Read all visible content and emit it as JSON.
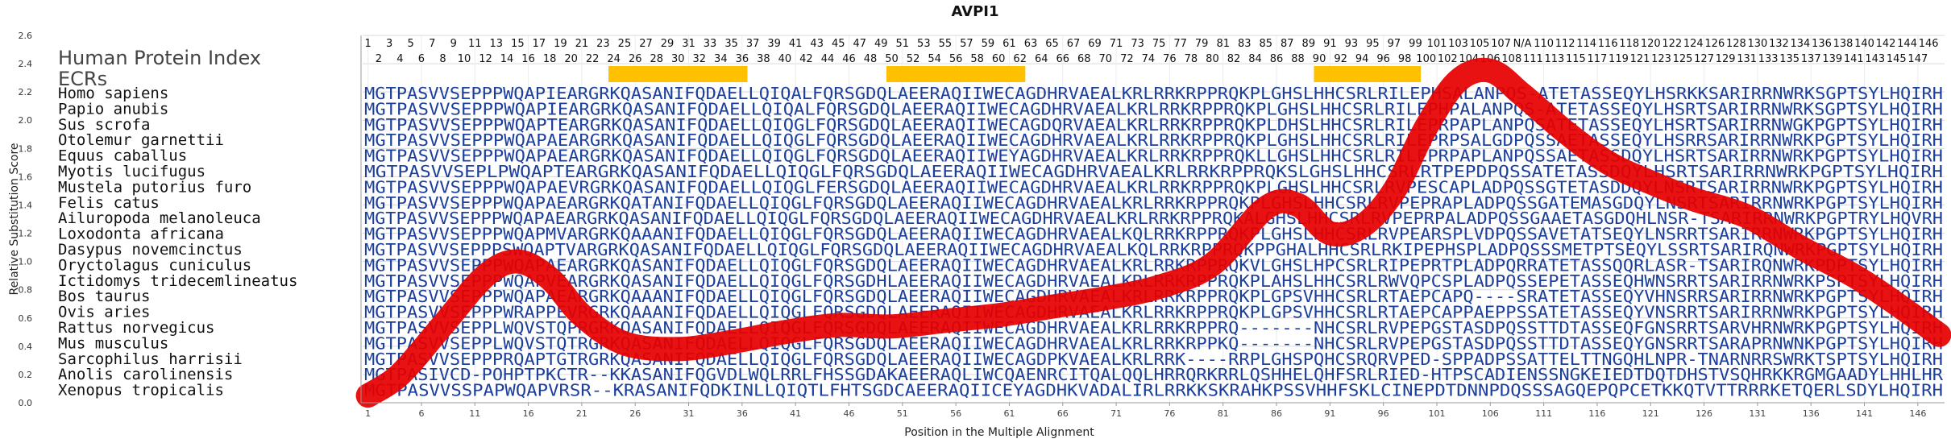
{
  "chart_data": {
    "type": "line",
    "title": "AVPI1",
    "xlabel": "Position in the Multiple Alignment",
    "ylabel": "Relative Substitution Score",
    "xlim": [
      1,
      148
    ],
    "ylim": [
      0,
      2.6
    ],
    "yticks": [
      "0.0",
      "0.2",
      "0.4",
      "0.6",
      "0.8",
      "1.0",
      "1.2",
      "1.4",
      "1.6",
      "1.8",
      "2.0",
      "2.2",
      "2.4",
      "2.6"
    ],
    "xticks": [
      "1",
      "6",
      "11",
      "16",
      "21",
      "26",
      "31",
      "36",
      "41",
      "46",
      "51",
      "56",
      "61",
      "66",
      "71",
      "76",
      "81",
      "86",
      "91",
      "96",
      "101",
      "106",
      "111",
      "116",
      "121",
      "126",
      "131",
      "136",
      "141",
      "146"
    ],
    "grid": true,
    "header_labels": {
      "human_index": "Human Protein Index",
      "ecrs": "ECRs"
    },
    "human_positions": [
      "1",
      "2",
      "3",
      "4",
      "5",
      "6",
      "7",
      "8",
      "9",
      "10",
      "11",
      "12",
      "13",
      "14",
      "15",
      "16",
      "17",
      "18",
      "19",
      "20",
      "21",
      "22",
      "23",
      "24",
      "25",
      "26",
      "27",
      "28",
      "29",
      "30",
      "31",
      "32",
      "33",
      "34",
      "35",
      "36",
      "37",
      "38",
      "39",
      "40",
      "41",
      "42",
      "43",
      "44",
      "45",
      "46",
      "47",
      "48",
      "49",
      "50",
      "51",
      "52",
      "53",
      "54",
      "55",
      "56",
      "57",
      "58",
      "59",
      "60",
      "61",
      "62",
      "63",
      "64",
      "65",
      "66",
      "67",
      "68",
      "69",
      "70",
      "71",
      "72",
      "73",
      "74",
      "75",
      "76",
      "77",
      "78",
      "79",
      "80",
      "81",
      "82",
      "83",
      "84",
      "85",
      "86",
      "87",
      "88",
      "89",
      "90",
      "91",
      "92",
      "93",
      "94",
      "95",
      "96",
      "97",
      "98",
      "99",
      "100",
      "101",
      "102",
      "103",
      "104",
      "105",
      "106",
      "107",
      "108",
      "N/A",
      "111",
      "110",
      "113",
      "112",
      "115",
      "114",
      "117",
      "116",
      "119",
      "118",
      "121",
      "120",
      "123",
      "122",
      "125",
      "124",
      "127",
      "126",
      "129",
      "128",
      "131",
      "130",
      "133",
      "132",
      "135",
      "134",
      "137",
      "136",
      "139",
      "138",
      "141",
      "140",
      "143",
      "142",
      "145",
      "144",
      "147",
      "146"
    ],
    "ecrs": [
      {
        "start": 24,
        "end": 36
      },
      {
        "start": 50,
        "end": 62
      },
      {
        "start": 90,
        "end": 99
      }
    ],
    "ecr_color": "#ffc000",
    "line_color": "#e60000",
    "sequence_color": "#1c3f9c",
    "sequences": [
      {
        "species": "Homo sapiens",
        "seq": "MGTPASVVSEPPPWQAPIEARGRKQASANIFQDAELLQIQALFQRSGDQLAEERAQIIWECAGDHRVAEALKRLRRKRPPRQKPLGHSLHHCSRLRILEPHSALANPQS-ATETASSEQYLHSRKKSARIRRNWRKSGPTSYLHQIRH"
      },
      {
        "species": "Papio anubis",
        "seq": "MGTPASVVSEPPPWQAPIEARGRKQASANIFQDAELLQIQALFQRSGDQLAEERAQIIWECAGDHRVAEALKRLRRKRPPRQKPLGHSLHHCSRLRILEPHPALANPQS-ATETASSEQYLHSRTSARIRRNWRKSGPTSYLHQIRH"
      },
      {
        "species": "Sus scrofa",
        "seq": "MGTPASVVSEPPPWQAPTEARGRKQASANIFQDAELLQIQGLFQRSGDQLAEERAQIIWECAGDQRVAEALKRLRRKRPPRQKPLDHSLHHCSRLRILEPRPAPLANPQSATETASSEQYLHSRTSARIRRNWGKPGPTSYLHQIRH"
      },
      {
        "species": "Otolemur garnettii",
        "seq": "MGTPASVVSEPPPWQAPAEARGRKQASANIFQDAELLQIQGLFQRSGDQLAEERAQIIWECAGDHRVAEALKRLRRKRPPRQKPLGHSLHHCSRLRILEPRPSALGDPQSSAETASSEQYLHSRRSARIRRNWRKPGPTSYLHQIRH"
      },
      {
        "species": "Equus caballus",
        "seq": "MGTPASVVSEPPPWQAPAEARGRKQASANIFQDAELLQIQGLFQRSGDQLAEERAQIIWEYAGDHRVAEALKRLRRKRPPRQKLLGHSLHHCSRLRILEPRPAPLANPQSSAETASSDQYLHSRTSARIRRNWRKPGPTSYLHQIRH"
      },
      {
        "species": "Myotis lucifugus",
        "seq": "MGTPASVVSEPLPWQAPTEARGRKQASANIFQDAELLQIQGLFQRSGDQLAEERAQIIWECAGDHRVAEALKRLRRKRPPRQKSLGHSLHHCSRLRTPEPDPQSSATETASSDQYLHSRTSARIRRNWRKPGPTSYLHQIRH"
      },
      {
        "species": "Mustela putorius furo",
        "seq": "MGTPASVVSEPPPWQAPAEVRGRKQASANIFQDAELLQIQGLFERSGDQLAEERAQIIWECAGDHRVAEALKRLRRKRPPRQKPLGHSLHHCSRLRVPESCAPLADPQSSGTETASDDQYLNSRTSARIRRNWRKPGPTSYLHQIRH"
      },
      {
        "species": "Felis catus",
        "seq": "MGTPASVVSEPPPWQAPAEARGRKQATANIFQDAELLQIQGLFQRSGDQLAEERAQIIWECAGDHRVAEALKRLRRKRPPRQKPLGHSLHHCSRLRVPEPRAPLADPQSSGATEMASGDQYLNSRTSARIRRNWRKPGPTSYLHQIRH"
      },
      {
        "species": "Ailuropoda melanoleuca",
        "seq": "MGTPASVVSEPPPWQAPAEARGRKQASANIFQDAELLQIQGLFQRSGDQLAEERAQIIWECAGDHRVAEALKRLRRKRPPRQKALGHSLHHCSRLRVPEPRPALADPQSSGAAETASGDQHLNSR-TSARIRRNWRKPGPTRYLHQVRH"
      },
      {
        "species": "Loxodonta africana",
        "seq": "MGTPASVVSEPPPWQAPMVARGRKQAAANIFQDAELLQIQGLFQRSGDQLAEERAQIIWECAGDHRVAEALKQLRRKRPPRQKPLGHSLHHCSRLRVPEARSPLVDPQSSAVETATSEQYLNSRRTSARIRRNWRKPGPTSYLHQIRH"
      },
      {
        "species": "Dasypus novemcinctus",
        "seq": "MGTPASVVSEPPPSWQAPTVARGRKQASANIFQDAELLQIQGLFQRSGDQLAEERAQIIWECAGDHRVAEALKQLRRKRPPRQKPPGHALHHCSRLRKIPEPHSPLADPQSSSMETPTSEQYLSSRTSARIRQNWRKPGPTSYLHQIRH"
      },
      {
        "species": "Oryctolagus cuniculus",
        "seq": "MGTPASVVSEPPPWQAPAEARGRKQASANIFQDAELLQIQGLFQRSGDQLAEERAQIIWECAGDHRVAEALKRLRRKRPPRQKVLGHSLHPCSRLRIPEPRTPLADPQRRATETASSQQRLASR-TSARIRQNWRKPDPTSYLHQIRH"
      },
      {
        "species": "Ictidomys tridecemlineatus",
        "seq": "MGTPASVVSEPPPWQAPVEARGRKQASANIFQDAELLQIQGLFQRSGDHLAEERAQIIWECAGDHRVAEALKRLRRKRPPRQKPLAHSLHHCSRLRWVQPCSPLADPQSSEPETASSEQHWNSRRTSARIRRNWRKPSPTSYLHQIRH"
      },
      {
        "species": "Bos taurus",
        "seq": "MGTPASVVSEPPPWQAPAEARGRKQAAANIFQDAELLQIQGLFQRSGDQLAEERAQIIWECAGDHRVAEALKRLRRKRPPRQKPLGPSVHHCSRLRTAEPCAPQ----SRATETASSEQYVHNSRRSARIRRNWRKPGPTSYLHQIRH"
      },
      {
        "species": "Ovis aries",
        "seq": "MGTPASVVSEPPPWRAPPEVRGRKQAAANIFQDAELLQIQGLFQRSGDQLAEERAQIIWECAGDHRVAEALKRLRRKRPPRQKPLGPSVHHCSRLRTAEPCAPPAEPPSSATETASSEQYVNSRRTSARIRRNWRKPGPTSYLHQIRH"
      },
      {
        "species": "Rattus norvegicus",
        "seq": "MGTPASVVSEPPLWQVSTQPRGRKQASANIFQDAELLQIQGLFQRSGDQLAEERAQIIWECAGDHRVAEALKRLRRKRPPRQ-------NHCSRLRVPEPGSTASDPQSSTTDTASSEQFGNSRRTSARVHRNWRKPGPTSYLHQIRH"
      },
      {
        "species": "Mus musculus",
        "seq": "MGTPASVVSEPPLWQVSTQTRGRKQASANIFQDAELLQIQGLFQRSGDQLAEERAQIIWECAGDHRVAEALKRLRRKRPPKQ-------NHCSRLRVPEPGSTASDPQSSTTDTASSEQYGNSRRTSARAPRNWNKPGPTSYLHQIRH"
      },
      {
        "species": "Sarcophilus harrisii",
        "seq": "MGTPASVVSEPPPRQAPTGTRGRKQASANIFQDAELLQIQGLFQRSGDQLAEERAQIIWECAGDPKVAEALKRLRRK----RRPLGHSPQHCSRQRVPED-SPPADPSSATTELTTNGQHLNPR-TNARNRRSWRKTSPTSYLHQIRH"
      },
      {
        "species": "Anolis carolinensis",
        "seq": "MGTPASIVCD-POHPTPKCTR--KKASANIFQGVDLWQLRRLFHSSGDAKAEERAQLIWCQAENRCITQALQQLHRRQRKRRLQSHHELQHFSRLRIED-HTPSCADIENSSNGKEIEDTDQTDHSTVSQHRKKRGMGAADYLHHLHR"
      },
      {
        "species": "Xenopus tropicalis",
        "seq": "MGTPASVVSSPAPWQAPVRSR--KRASANIFQDKINLLQIQTLFHTSGDCAEERAQIICEYAGDHKVADALIRLRRKKSKRAHKPSSVHHFSKLCINEPDTDNNPDQSSSAGQEPQPCETKKQTVTTRRRKETQERLSDYLHQIRH"
      }
    ],
    "series": [
      {
        "x": [
          1,
          4,
          8,
          12,
          15,
          18,
          21,
          25,
          30,
          35,
          40,
          45,
          50,
          55,
          60,
          65,
          70,
          75,
          80,
          85,
          88,
          91,
          94,
          97,
          100,
          103,
          106,
          109,
          113,
          117,
          121,
          125,
          130,
          135,
          140,
          144,
          148
        ],
        "y": [
          0.05,
          0.2,
          0.55,
          0.9,
          1.0,
          0.88,
          0.62,
          0.42,
          0.38,
          0.43,
          0.5,
          0.55,
          0.54,
          0.58,
          0.62,
          0.68,
          0.74,
          0.82,
          0.98,
          1.38,
          1.4,
          1.2,
          1.25,
          1.5,
          1.95,
          2.28,
          2.35,
          2.18,
          1.92,
          1.7,
          1.56,
          1.44,
          1.32,
          1.1,
          0.9,
          0.7,
          0.48
        ]
      }
    ]
  }
}
